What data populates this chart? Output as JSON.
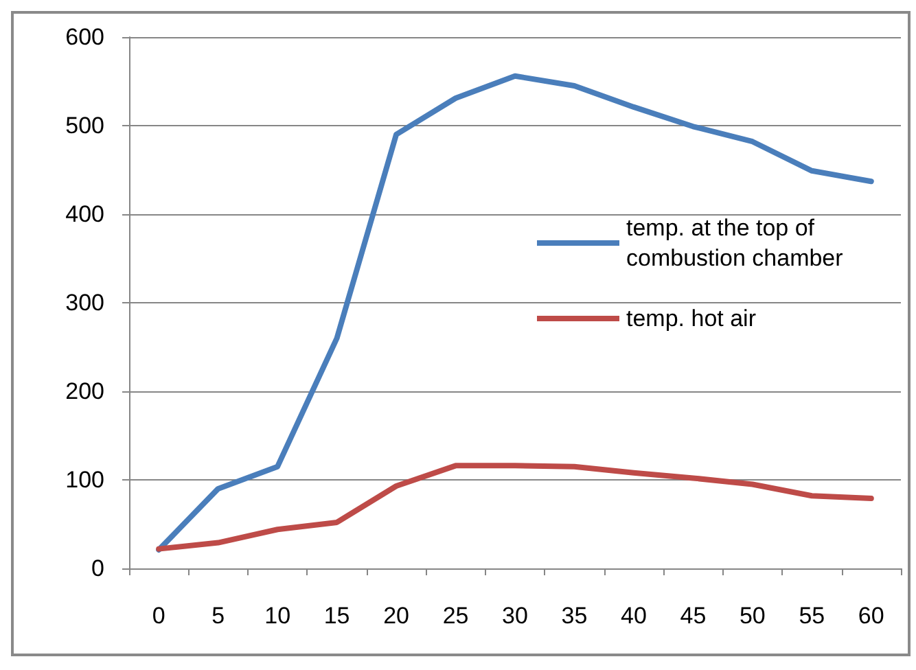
{
  "chart_data": {
    "type": "line",
    "categories": [
      "0",
      "5",
      "10",
      "15",
      "20",
      "25",
      "30",
      "35",
      "40",
      "45",
      "50",
      "55",
      "60"
    ],
    "series": [
      {
        "name": "temp. at the top of combustion chamber",
        "color": "#4a7ebb",
        "values": [
          21,
          90,
          115,
          260,
          490,
          531,
          556,
          545,
          521,
          499,
          482,
          449,
          437
        ]
      },
      {
        "name": "temp. hot air",
        "color": "#be4b48",
        "values": [
          22,
          29,
          44,
          52,
          93,
          116,
          116,
          115,
          108,
          102,
          95,
          82,
          79
        ]
      }
    ],
    "ylim": [
      0,
      600
    ],
    "yticks": [
      0,
      100,
      200,
      300,
      400,
      500,
      600
    ],
    "grid": "y",
    "legend": "right",
    "marker": "none",
    "line_style": "solid"
  }
}
